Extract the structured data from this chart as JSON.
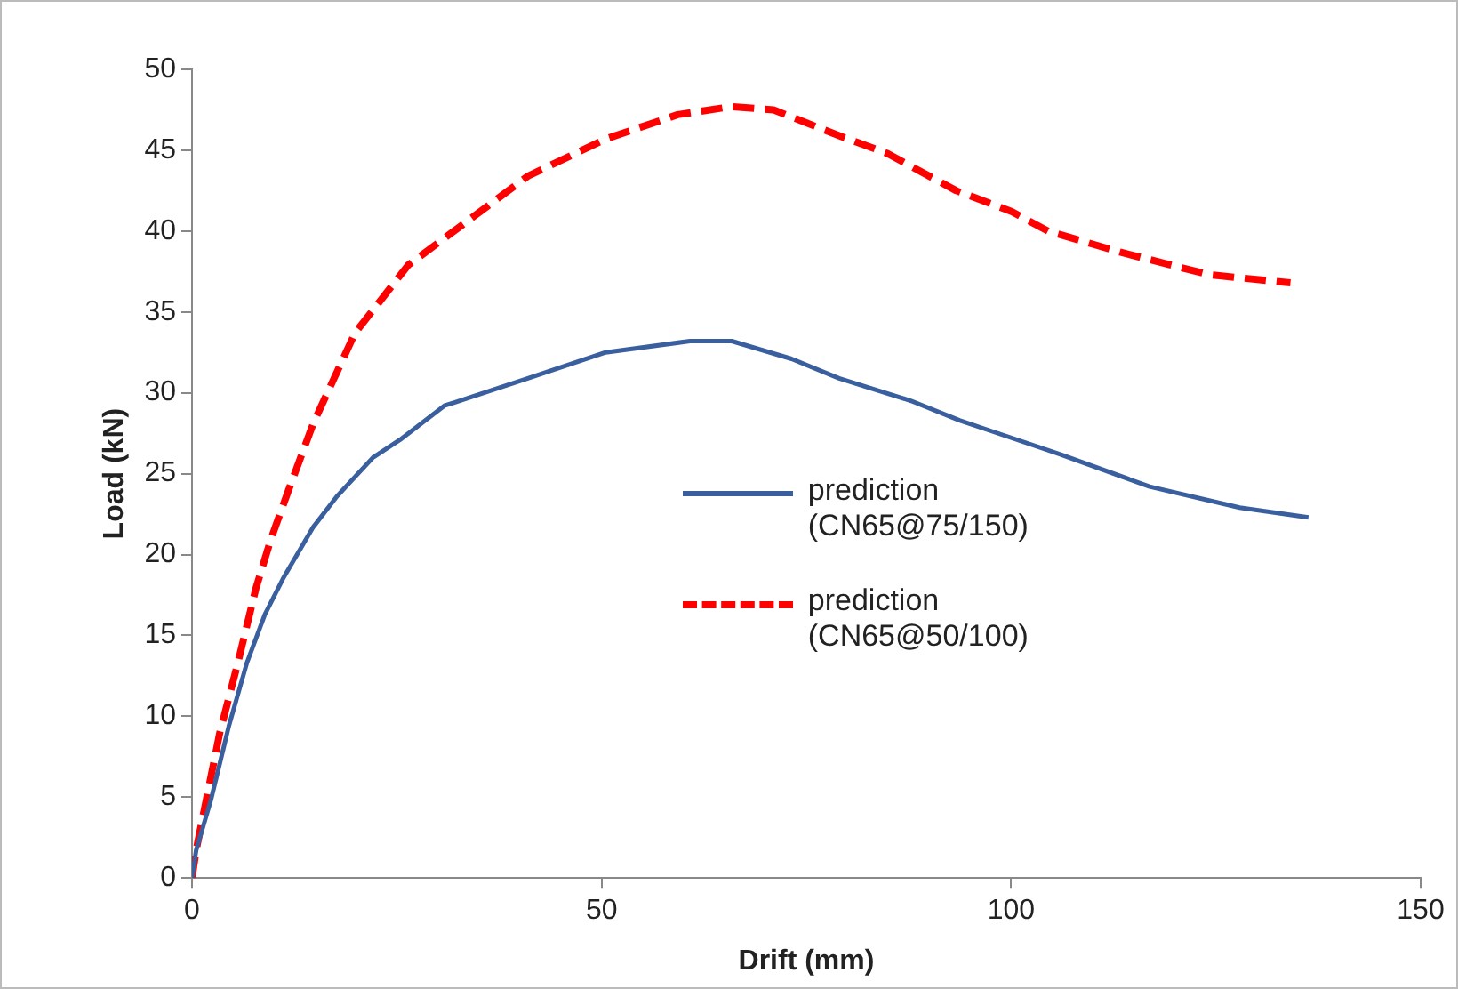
{
  "chart_data": {
    "type": "line",
    "xlabel": "Drift (mm)",
    "ylabel": "Load (kN)",
    "xlim": [
      0,
      150
    ],
    "xticks": [
      0,
      50,
      100,
      150
    ],
    "ylim": [
      0,
      50
    ],
    "yticks": [
      0,
      5,
      10,
      15,
      20,
      25,
      30,
      35,
      40,
      45,
      50
    ],
    "grid": false,
    "legend": "center",
    "marker": "none",
    "series": [
      {
        "name": "prediction (CN65@75/150)",
        "color": "#3a5f9e",
        "line_style": "solid",
        "x": [
          0,
          0.5,
          2.3,
          4.5,
          6.7,
          8.9,
          11.1,
          14.8,
          17.7,
          22.1,
          25.4,
          30.8,
          41,
          50.5,
          60.8,
          65.9,
          73.2,
          79,
          87.8,
          93.7,
          97.2,
          106,
          116.9,
          127.9,
          136.3
        ],
        "values": [
          0,
          1.7,
          4.8,
          9.4,
          13.3,
          16.3,
          18.5,
          21.7,
          23.6,
          26,
          27.1,
          29.2,
          30.9,
          32.5,
          33.2,
          33.2,
          32.1,
          30.9,
          29.5,
          28.3,
          27.7,
          26.2,
          24.2,
          22.9,
          22.3
        ]
      },
      {
        "name": "prediction (CN65@50/100)",
        "color": "#ff0000",
        "line_style": "dashed",
        "x": [
          0,
          0.5,
          3.4,
          5.6,
          7.8,
          9.6,
          11.8,
          14.8,
          19.9,
          26.4,
          41,
          50.5,
          59.3,
          65.9,
          71,
          79,
          84.9,
          93.3,
          100.1,
          104.5,
          113.3,
          124.2,
          134.1
        ],
        "values": [
          0,
          1.7,
          9,
          13.3,
          17.9,
          20.9,
          24,
          28.1,
          33.7,
          37.9,
          43.4,
          45.7,
          47.2,
          47.7,
          47.5,
          45.9,
          44.8,
          42.5,
          41.2,
          40,
          38.7,
          37.3,
          36.8
        ]
      }
    ]
  }
}
